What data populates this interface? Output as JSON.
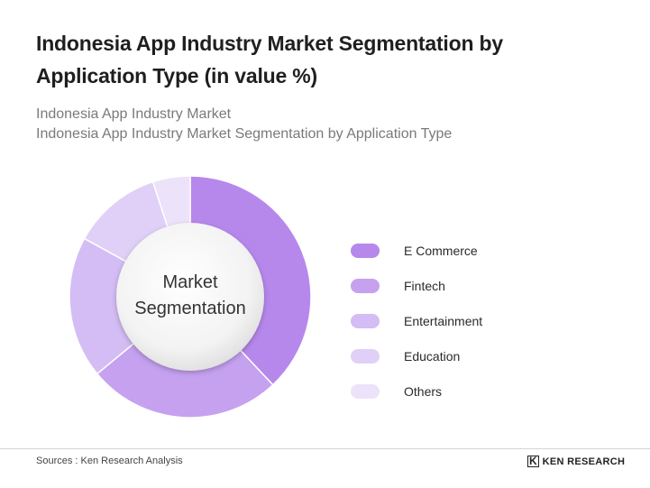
{
  "header": {
    "title": "Indonesia App Industry Market Segmentation by Application Type (in value %)",
    "subtitle_line1": "Indonesia App Industry Market",
    "subtitle_line2": "Indonesia App Industry Market Segmentation by Application Type"
  },
  "chart_data": {
    "type": "pie",
    "variant": "donut",
    "center_label_line1": "Market",
    "center_label_line2": "Segmentation",
    "categories": [
      "E Commerce",
      "Fintech",
      "Entertainment",
      "Education",
      "Others"
    ],
    "values": [
      38,
      26,
      19,
      12,
      5
    ],
    "colors": [
      "#b688ec",
      "#c5a1f0",
      "#d3bdf4",
      "#e0d0f7",
      "#ece3fa"
    ],
    "legend_position": "right"
  },
  "footer": {
    "source": "Sources : Ken Research Analysis",
    "brand": "KEN RESEARCH",
    "brand_mark": "K"
  }
}
